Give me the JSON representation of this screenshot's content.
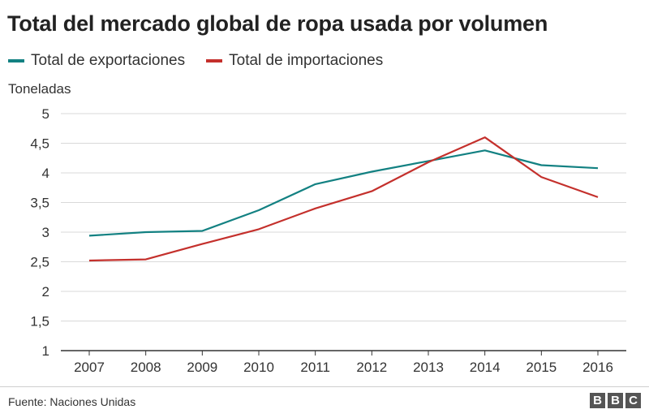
{
  "title": "Total del mercado global de ropa usada por volumen",
  "legend": [
    {
      "label": "Total de exportaciones",
      "color": "#138182"
    },
    {
      "label": "Total de importaciones",
      "color": "#c4302c"
    }
  ],
  "source": "Fuente: Naciones Unidas",
  "logo": {
    "letters": [
      "B",
      "B",
      "C"
    ]
  },
  "chart_data": {
    "type": "line",
    "title": "Total del mercado global de ropa usada por volumen",
    "xlabel": "",
    "ylabel": "Toneladas",
    "x": [
      "2007",
      "2008",
      "2009",
      "2010",
      "2011",
      "2012",
      "2013",
      "2014",
      "2015",
      "2016"
    ],
    "ylim": [
      1,
      5
    ],
    "yticks": [
      "1",
      "1,5",
      "2",
      "2,5",
      "3",
      "3,5",
      "4",
      "4,5",
      "5"
    ],
    "grid": true,
    "legend_position": "top-left",
    "series": [
      {
        "name": "Total de exportaciones",
        "color": "#138182",
        "values": [
          2.94,
          3.0,
          3.02,
          3.37,
          3.81,
          4.02,
          4.2,
          4.38,
          4.13,
          4.08
        ]
      },
      {
        "name": "Total de importaciones",
        "color": "#c4302c",
        "values": [
          2.52,
          2.54,
          2.8,
          3.05,
          3.4,
          3.69,
          4.18,
          4.6,
          3.93,
          3.59
        ]
      }
    ]
  }
}
